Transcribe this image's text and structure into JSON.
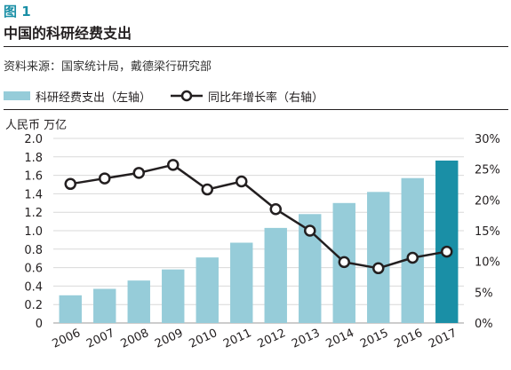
{
  "header": {
    "figure_label": "图 1",
    "title": "中国的科研经费支出",
    "source": "资料来源：国家统计局，戴德梁行研究部"
  },
  "chart_data": {
    "type": "bar",
    "categories": [
      "2006",
      "2007",
      "2008",
      "2009",
      "2010",
      "2011",
      "2012",
      "2013",
      "2014",
      "2015",
      "2016",
      "2017"
    ],
    "series": [
      {
        "name": "科研经费支出（左轴）",
        "type": "bar",
        "axis": "left",
        "values": [
          0.3,
          0.37,
          0.46,
          0.58,
          0.71,
          0.87,
          1.03,
          1.18,
          1.3,
          1.42,
          1.57,
          1.76
        ],
        "color": "#96ccd9",
        "highlight_color": "#1a8fa6",
        "highlight_index": 11
      },
      {
        "name": "同比年增长率（右轴）",
        "type": "line",
        "axis": "right",
        "values": [
          22.6,
          23.5,
          24.4,
          25.7,
          21.7,
          23.0,
          18.5,
          15.0,
          9.9,
          8.9,
          10.6,
          11.6
        ],
        "color": "#231f20"
      }
    ],
    "ylabel": "人民币 万亿",
    "ylim": [
      0,
      2.0
    ],
    "yticks": [
      "0",
      "0.2",
      "0.4",
      "0.6",
      "0.8",
      "1.0",
      "1.2",
      "1.4",
      "1.6",
      "1.8",
      "2.0"
    ],
    "y2lim": [
      0,
      30
    ],
    "y2ticks": [
      "0%",
      "5%",
      "10%",
      "15%",
      "20%",
      "25%",
      "30%"
    ],
    "grid": true,
    "legend": "top-left"
  }
}
